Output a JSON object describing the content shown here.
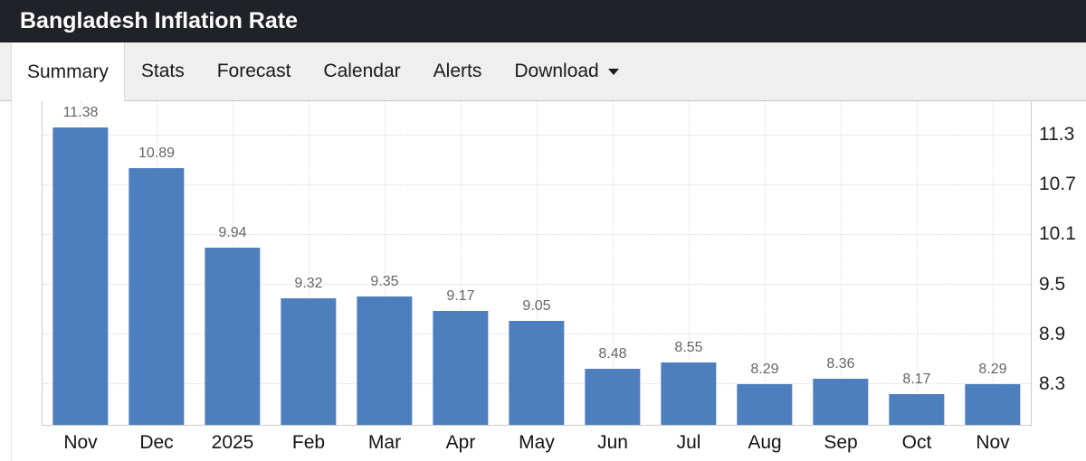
{
  "header": {
    "title": "Bangladesh Inflation Rate"
  },
  "tabs": [
    {
      "label": "Summary",
      "active": true,
      "has_caret": false
    },
    {
      "label": "Stats",
      "active": false,
      "has_caret": false
    },
    {
      "label": "Forecast",
      "active": false,
      "has_caret": false
    },
    {
      "label": "Calendar",
      "active": false,
      "has_caret": false
    },
    {
      "label": "Alerts",
      "active": false,
      "has_caret": false
    },
    {
      "label": "Download",
      "active": false,
      "has_caret": true
    }
  ],
  "chart_data": {
    "type": "bar",
    "title": "Bangladesh Inflation Rate",
    "categories": [
      "Nov",
      "Dec",
      "2025",
      "Feb",
      "Mar",
      "Apr",
      "May",
      "Jun",
      "Jul",
      "Aug",
      "Sep",
      "Oct",
      "Nov"
    ],
    "values": [
      11.38,
      10.89,
      9.94,
      9.32,
      9.35,
      9.17,
      9.05,
      8.48,
      8.55,
      8.29,
      8.36,
      8.17,
      8.29
    ],
    "data_labels": [
      "11.38",
      "10.89",
      "9.94",
      "9.32",
      "9.35",
      "9.17",
      "9.05",
      "8.48",
      "8.55",
      "8.29",
      "8.36",
      "8.17",
      "8.29"
    ],
    "xlabel": "",
    "ylabel": "",
    "ylim": [
      7.8,
      11.7
    ],
    "yticks": [
      8.3,
      8.9,
      9.5,
      10.1,
      10.7,
      11.3
    ],
    "yaxis_side": "right",
    "grid": "dotted",
    "legend": "none",
    "bar_color": "#4d7ebd"
  },
  "colors": {
    "header_bg": "#212227",
    "tabbar_bg": "#efefef",
    "bar": "#4d7ebd",
    "data_label": "#666666",
    "axis_label": "#1d1d1d"
  }
}
